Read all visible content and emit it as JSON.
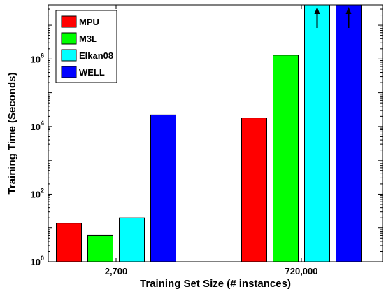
{
  "chart_data": {
    "type": "bar",
    "scale_y": "log10",
    "categories": [
      "2,700",
      "720,000"
    ],
    "series": [
      {
        "name": "MPU",
        "color": "#ff0000",
        "values": [
          14,
          18000
        ]
      },
      {
        "name": "M3L",
        "color": "#00ff00",
        "values": [
          6,
          1300000
        ]
      },
      {
        "name": "Elkan08",
        "color": "#00ffff",
        "values": [
          20,
          null
        ],
        "exceeds_axis": [
          false,
          true
        ]
      },
      {
        "name": "WELL",
        "color": "#0000ff",
        "values": [
          22000,
          null
        ],
        "exceeds_axis": [
          false,
          true
        ]
      }
    ],
    "ylim": [
      1,
      40000000
    ],
    "yticks": [
      {
        "base": "10",
        "exp": "0",
        "value": 1
      },
      {
        "base": "10",
        "exp": "2",
        "value": 100
      },
      {
        "base": "10",
        "exp": "4",
        "value": 10000
      },
      {
        "base": "10",
        "exp": "6",
        "value": 1000000
      }
    ],
    "xlabel": "Training Set Size (# instances)",
    "ylabel": "Training Time (Seconds)",
    "legend_position": "top-left",
    "grid": false
  }
}
